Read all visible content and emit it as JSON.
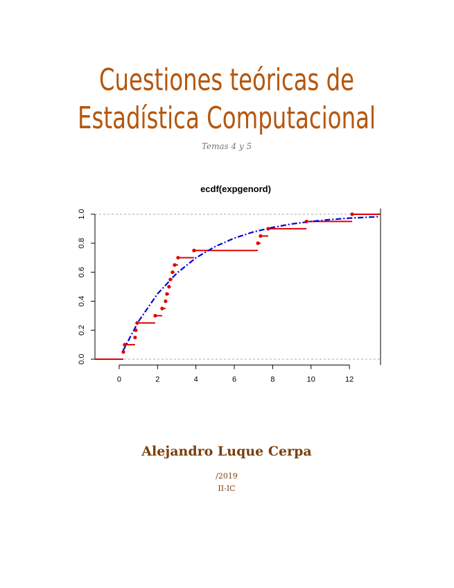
{
  "title": [
    "Cuestiones teóricas de",
    "Estadística Computacional"
  ],
  "subtitle": "Temas 4 y 5",
  "chart_data": {
    "type": "ecdf",
    "title": "ecdf(expgenord)",
    "x": [
      0.22,
      0.29,
      0.83,
      0.87,
      0.94,
      1.88,
      2.24,
      2.42,
      2.49,
      2.6,
      2.67,
      2.78,
      2.89,
      3.07,
      3.9,
      7.23,
      7.37,
      7.77,
      9.76,
      12.14
    ],
    "values": [
      0.05,
      0.1,
      0.15,
      0.2,
      0.25,
      0.3,
      0.35,
      0.4,
      0.45,
      0.5,
      0.55,
      0.6,
      0.65,
      0.7,
      0.75,
      0.8,
      0.85,
      0.9,
      0.95,
      1.0
    ],
    "color": "#e00000",
    "fit": {
      "color": "#0000dd",
      "x": [
        0.2,
        1,
        2,
        3,
        4,
        5,
        6,
        7,
        8,
        9,
        10,
        11,
        12,
        13.5
      ],
      "values": [
        0.058,
        0.259,
        0.451,
        0.593,
        0.699,
        0.777,
        0.835,
        0.878,
        0.909,
        0.933,
        0.95,
        0.963,
        0.973,
        0.983
      ]
    },
    "xlim": [
      -1.26,
      13.62
    ],
    "ylim": [
      -0.04,
      1.04
    ],
    "xticks": [
      0,
      2,
      4,
      6,
      8,
      10,
      12
    ],
    "yticks": [
      {
        "value": 0,
        "label": "0.0"
      },
      0.2,
      0.4,
      0.6,
      0.8,
      {
        "value": 1,
        "label": "1.0"
      }
    ],
    "hlines": [
      0,
      1
    ]
  },
  "author": "Alejandro Luque Cerpa",
  "date": "/2019",
  "course": "II-IC"
}
